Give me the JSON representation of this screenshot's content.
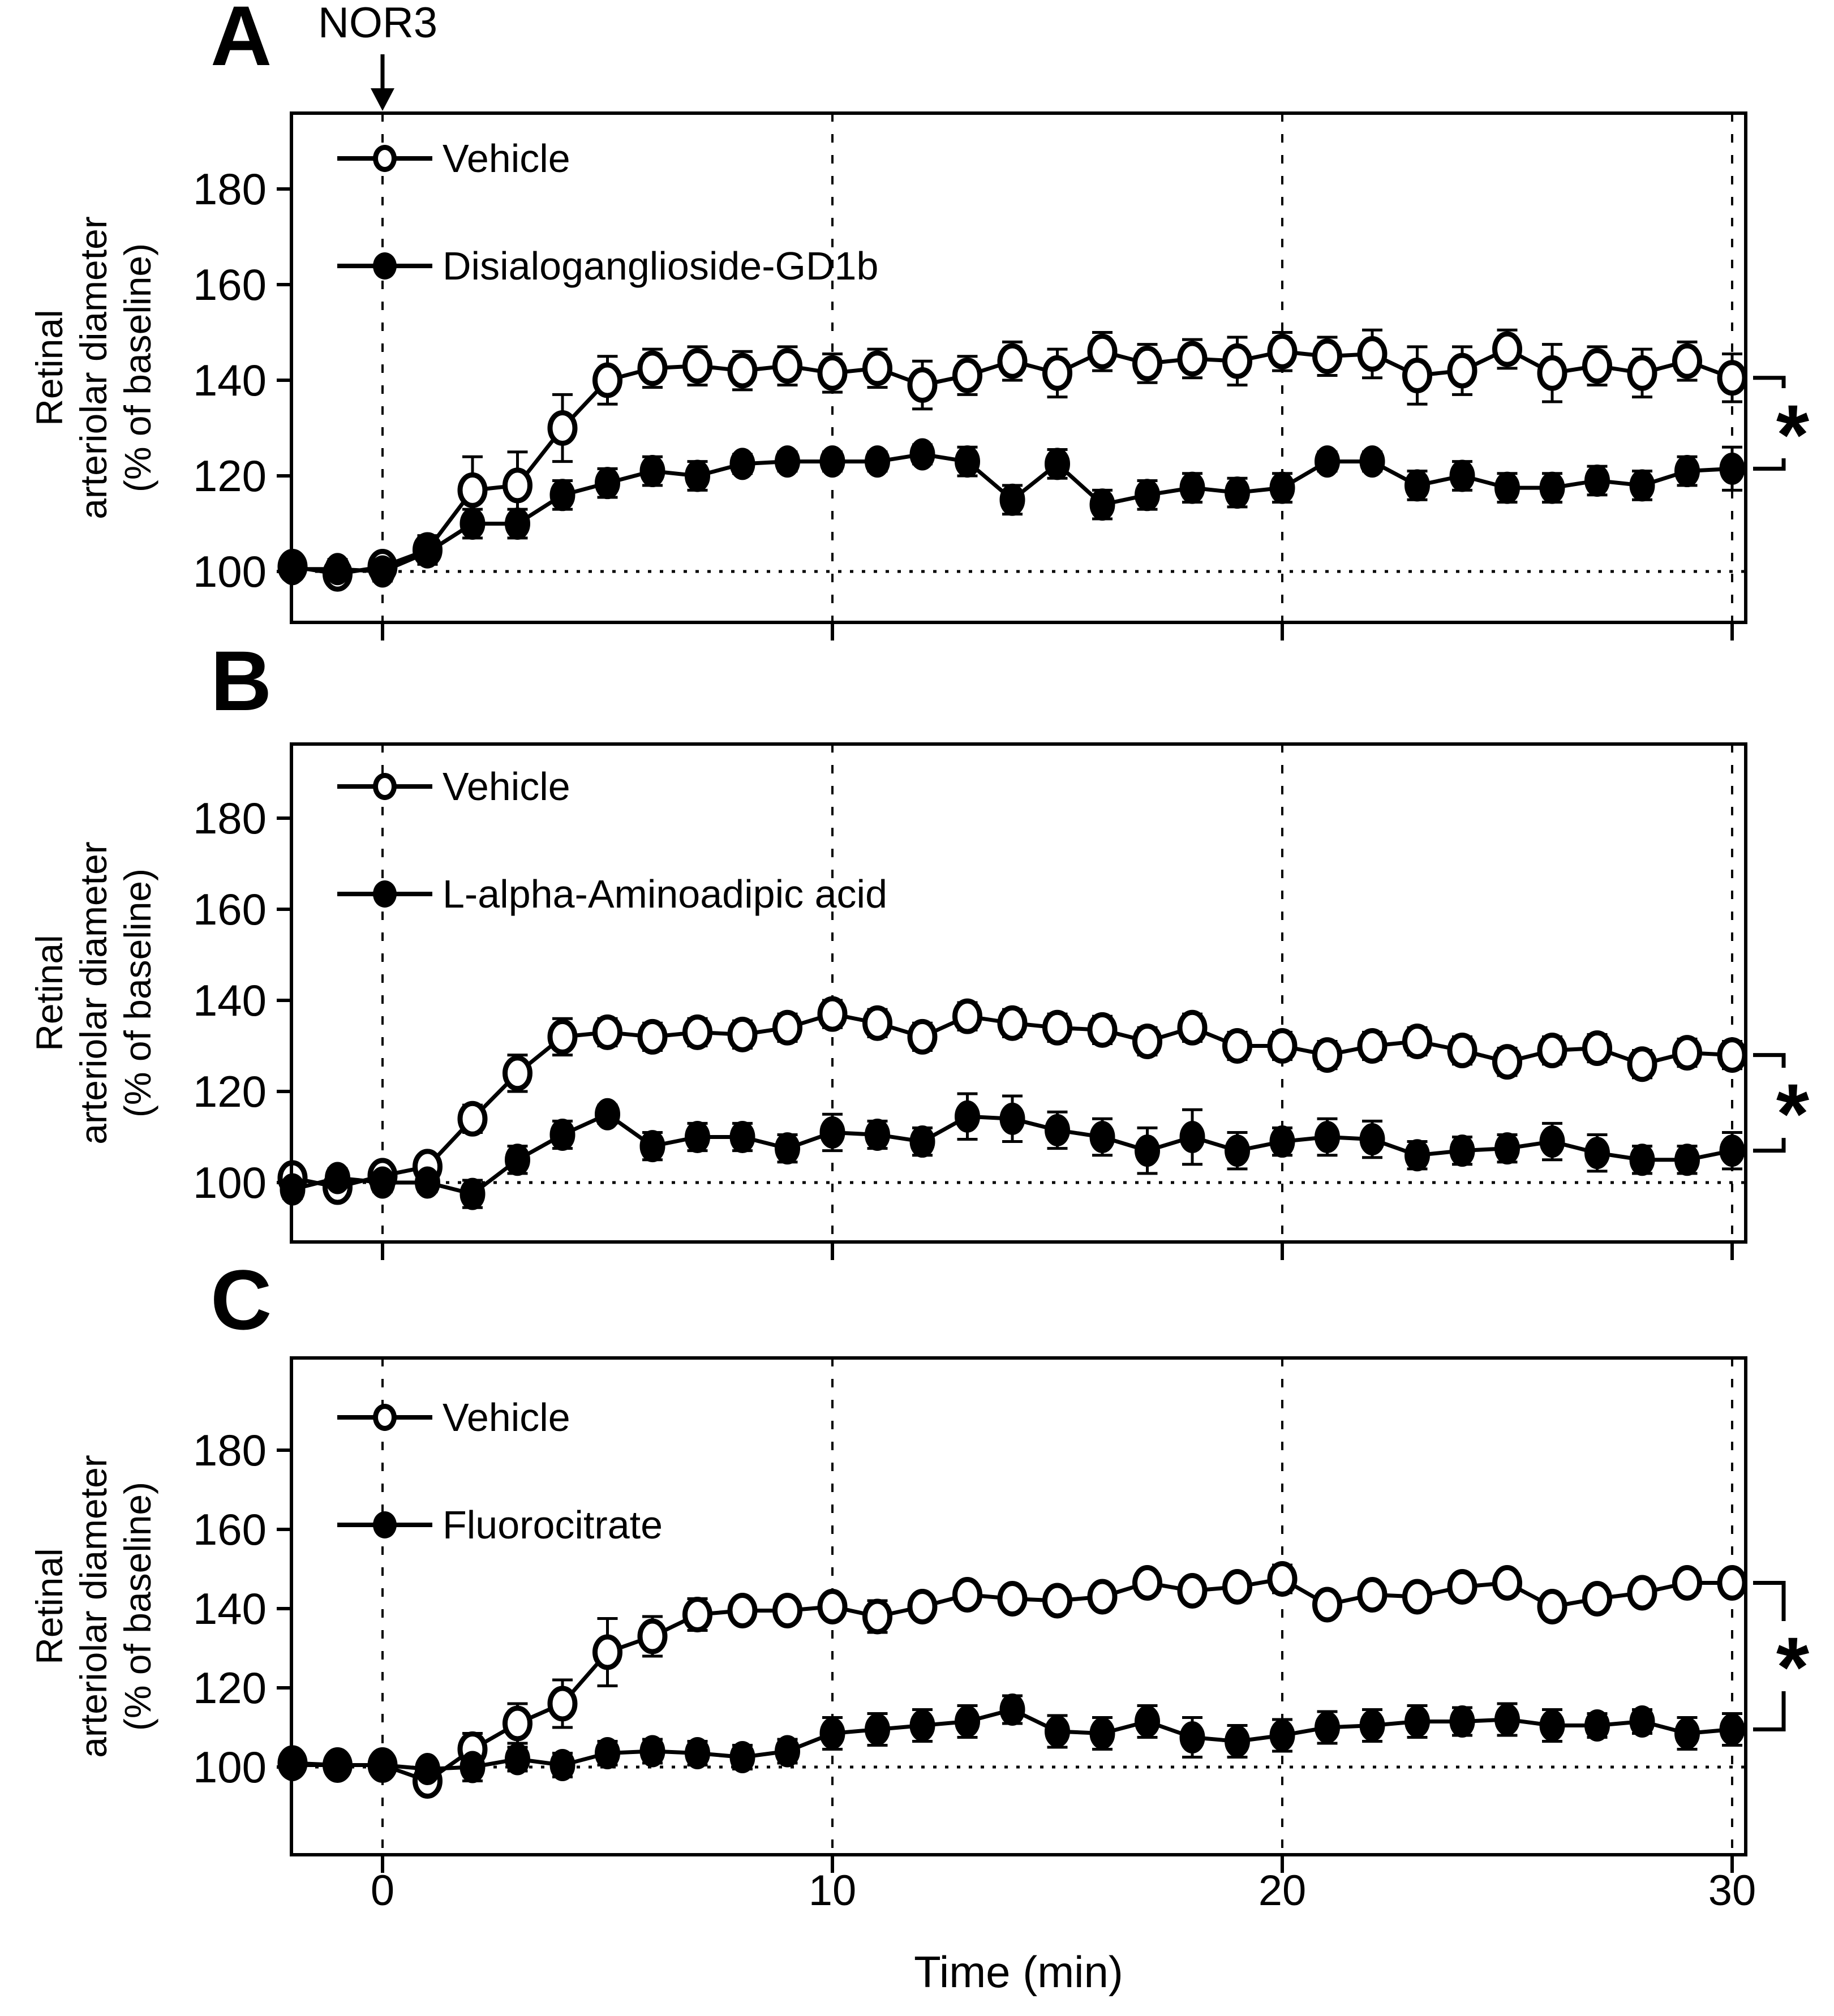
{
  "chart_data": {
    "type": "line",
    "x_label": "Time (min)",
    "x_ticks": [
      0,
      10,
      20,
      30
    ],
    "x_tick_labels": [
      "0",
      "10",
      "20",
      "30"
    ],
    "x_range": [
      -2,
      30.3
    ],
    "y_ticks": [
      100,
      120,
      140,
      160,
      180
    ],
    "y_label_lines": [
      "Retinal",
      "arteriolar diameter",
      "(% of baseline)"
    ],
    "grid": "dashed vertical at x ticks, dotted horizontal at y=100",
    "legend_position": "top-left inside each panel",
    "annotation_label": "NOR3",
    "annotation_x": 0,
    "significance_marker": "*",
    "time": [
      -2,
      -1,
      0,
      1,
      2,
      3,
      4,
      5,
      6,
      7,
      8,
      9,
      10,
      11,
      12,
      13,
      14,
      15,
      16,
      17,
      18,
      19,
      20,
      21,
      22,
      23,
      24,
      25,
      26,
      27,
      28,
      29,
      30
    ],
    "panels": [
      {
        "label": "A",
        "series": [
          {
            "name": "Vehicle",
            "marker": "open",
            "values": [
              101,
              99.5,
              101,
              104.5,
              117,
              118,
              130,
              140,
              142.5,
              143,
              142,
              143,
              141.5,
              142.5,
              139,
              141,
              144,
              141.5,
              146,
              143.5,
              144.5,
              144,
              146,
              145,
              145.5,
              141,
              142,
              146.5,
              141.5,
              143,
              141.5,
              144,
              140.5
            ],
            "errors": [
              2,
              2,
              2,
              3,
              7,
              7,
              7,
              5,
              4,
              4,
              4,
              4,
              4,
              4,
              5,
              4,
              4,
              5,
              4,
              4,
              4,
              5,
              4,
              4,
              5,
              6,
              5,
              4,
              6,
              4,
              5,
              4,
              5
            ]
          },
          {
            "name": "Disialoganglioside-GD1b",
            "marker": "filled",
            "values": [
              100.5,
              100.5,
              100,
              104,
              110,
              110,
              116,
              118.5,
              121,
              120,
              122.5,
              123,
              123,
              123,
              124.5,
              123,
              115,
              122.5,
              114,
              116,
              117.5,
              116.5,
              117.5,
              123,
              123,
              118,
              120,
              117.5,
              117.5,
              119,
              118,
              121,
              121.5
            ],
            "errors": [
              2,
              2,
              2,
              2,
              3,
              3,
              3,
              3,
              3,
              3,
              2,
              2,
              2,
              2,
              2,
              3,
              3,
              3,
              3,
              3,
              3,
              3,
              3,
              2,
              2,
              3,
              3,
              3,
              3,
              3,
              3,
              3,
              4.5
            ]
          }
        ]
      },
      {
        "label": "B",
        "series": [
          {
            "name": "Vehicle",
            "marker": "open",
            "values": [
              101,
              99,
              101.5,
              103.5,
              114,
              124,
              132,
              133,
              132,
              133,
              132.5,
              134,
              137,
              135,
              132,
              136.5,
              135,
              134,
              133.5,
              131,
              134,
              130,
              130,
              128,
              130,
              131,
              129,
              126.5,
              129,
              129.5,
              126,
              128.5,
              128
            ],
            "errors": [
              2,
              2,
              2,
              2,
              3,
              4,
              4,
              3,
              3,
              3,
              3,
              3,
              3,
              3,
              3,
              3,
              3,
              3,
              3,
              3,
              3,
              3,
              3,
              3,
              3,
              3,
              3,
              3,
              3,
              3,
              3,
              3,
              3
            ]
          },
          {
            "name": "L-alpha-Aminoadipic acid",
            "marker": "filled",
            "values": [
              98.5,
              101,
              100,
              100,
              97.5,
              105,
              110.5,
              115,
              108,
              110,
              110,
              107.5,
              111,
              110.5,
              109,
              114.5,
              114,
              111.5,
              110,
              107,
              110,
              107,
              109,
              110,
              109.5,
              106,
              107,
              107.5,
              109,
              106.5,
              105,
              105,
              107
            ],
            "errors": [
              2,
              2,
              2,
              2,
              3,
              3,
              3,
              2,
              3,
              3,
              3,
              3,
              4,
              3,
              3,
              5,
              5,
              4,
              4,
              5,
              6,
              4,
              3,
              4,
              4,
              3,
              3,
              3,
              4,
              4,
              3,
              3,
              4
            ]
          }
        ]
      },
      {
        "label": "C",
        "series": [
          {
            "name": "Vehicle",
            "marker": "open",
            "values": [
              101,
              100.5,
              100.5,
              96.5,
              104.5,
              111,
              116,
              129,
              133,
              138.5,
              139.5,
              139.5,
              140.5,
              138,
              140.5,
              143.5,
              142.5,
              142,
              143,
              146.5,
              144.5,
              145.5,
              147.5,
              141,
              143.5,
              143,
              145.5,
              146.5,
              140.5,
              142.5,
              144,
              146.5,
              146.5
            ],
            "errors": [
              2,
              2,
              2,
              2,
              4,
              5,
              6,
              8.5,
              5,
              4,
              3,
              3,
              3,
              4,
              3,
              3,
              3,
              3,
              3,
              3,
              3,
              3,
              3.5,
              3,
              3,
              3,
              3,
              3,
              3,
              3,
              3,
              3,
              3
            ]
          },
          {
            "name": "Fluorocitrate",
            "marker": "filled",
            "values": [
              100.5,
              100.5,
              100.5,
              99.5,
              100,
              102,
              100.5,
              103.5,
              104,
              103.5,
              102.5,
              104,
              108.5,
              109.5,
              110.5,
              111.5,
              114.5,
              109,
              108.5,
              111.5,
              107.5,
              106.5,
              108,
              110,
              110.5,
              111.5,
              111.5,
              112,
              110.5,
              110.5,
              111.5,
              108.5,
              109.5
            ],
            "errors": [
              2,
              2,
              2,
              2,
              3.5,
              3,
              3,
              3,
              3,
              3,
              3,
              3,
              4,
              4,
              4,
              4,
              3.5,
              4,
              4,
              4,
              5,
              4,
              4,
              4,
              4,
              4,
              3.5,
              4,
              4,
              3,
              3,
              4,
              4
            ]
          }
        ]
      }
    ]
  }
}
